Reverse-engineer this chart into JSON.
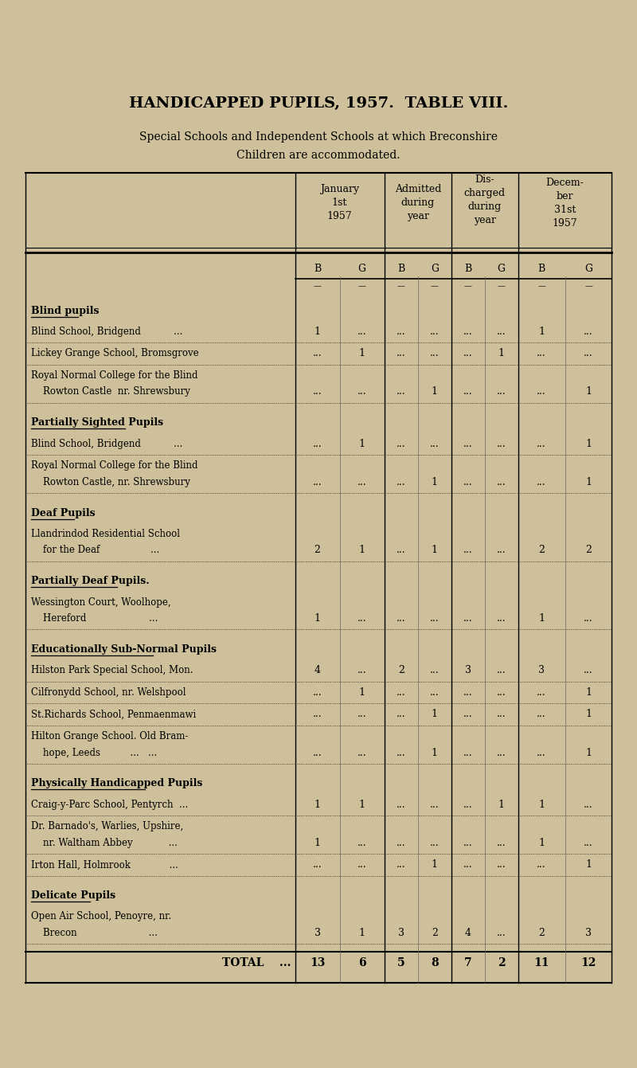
{
  "title": "HANDICAPPED PUPILS, 1957.  TABLE VIII.",
  "subtitle1": "Special Schools and Independent Schools at which Breconshire",
  "subtitle2": "Children are accommodated.",
  "bg_color": "#cdc09a",
  "sections": [
    {
      "header": "Blind pupils",
      "rows": [
        {
          "label": "Blind School, Bridgend           ...",
          "data": [
            "1",
            "...",
            "...",
            "...",
            "...",
            "...",
            "1",
            "..."
          ],
          "cont": false
        },
        {
          "label": "Lickey Grange School, Bromsgrove",
          "data": [
            "...",
            "1",
            "...",
            "...",
            "...",
            "1",
            "...",
            "..."
          ],
          "cont": false
        },
        {
          "label": "Royal Normal College for the Blind",
          "data": [
            "",
            "",
            "",
            "",
            "",
            "",
            "",
            ""
          ],
          "cont": false
        },
        {
          "label": "    Rowton Castle  nr. Shrewsbury",
          "data": [
            "...",
            "...",
            "...",
            "1",
            "...",
            "...",
            "...",
            "1"
          ],
          "cont": false
        }
      ],
      "dotted_after": [
        0,
        1,
        3
      ]
    },
    {
      "header": "Partially Sighted Pupils",
      "rows": [
        {
          "label": "Blind School, Bridgend           ...",
          "data": [
            "...",
            "1",
            "...",
            "...",
            "...",
            "...",
            "...",
            "1"
          ],
          "cont": false
        },
        {
          "label": "Royal Normal College for the Blind",
          "data": [
            "",
            "",
            "",
            "",
            "",
            "",
            "",
            ""
          ],
          "cont": false
        },
        {
          "label": "    Rowton Castle, nr. Shrewsbury",
          "data": [
            "...",
            "...",
            "...",
            "1",
            "...",
            "...",
            "...",
            "1"
          ],
          "cont": false
        }
      ],
      "dotted_after": [
        0,
        2
      ]
    },
    {
      "header": "Deaf Pupils",
      "rows": [
        {
          "label": "Llandrindod Residential School",
          "data": [
            "",
            "",
            "",
            "",
            "",
            "",
            "",
            ""
          ],
          "cont": false
        },
        {
          "label": "    for the Deaf                 ...",
          "data": [
            "2",
            "1",
            "...",
            "1",
            "...",
            "...",
            "2",
            "2"
          ],
          "cont": false
        }
      ],
      "dotted_after": [
        1
      ]
    },
    {
      "header": "Partially Deaf Pupils.",
      "rows": [
        {
          "label": "Wessington Court, Woolhope,",
          "data": [
            "",
            "",
            "",
            "",
            "",
            "",
            "",
            ""
          ],
          "cont": false
        },
        {
          "label": "    Hereford                     ...",
          "data": [
            "1",
            "...",
            "...",
            "...",
            "...",
            "...",
            "1",
            "..."
          ],
          "cont": false
        }
      ],
      "dotted_after": [
        1
      ]
    },
    {
      "header": "Educationally Sub-Normal Pupils",
      "rows": [
        {
          "label": "Hilston Park Special School, Mon.",
          "data": [
            "4",
            "...",
            "2",
            "...",
            "3",
            "...",
            "3",
            "..."
          ],
          "cont": false
        },
        {
          "label": "Cilfronydd School, nr. Welshpool",
          "data": [
            "...",
            "1",
            "...",
            "...",
            "...",
            "...",
            "...",
            "1"
          ],
          "cont": false
        },
        {
          "label": "St.Richards School, Penmaenmawi",
          "data": [
            "...",
            "...",
            "...",
            "1",
            "...",
            "...",
            "...",
            "1"
          ],
          "cont": false
        },
        {
          "label": "Hilton Grange School. Old Bram-",
          "data": [
            "",
            "",
            "",
            "",
            "",
            "",
            "",
            ""
          ],
          "cont": false
        },
        {
          "label": "    hope, Leeds          ...   ...",
          "data": [
            "...",
            "...",
            "...",
            "1",
            "...",
            "...",
            "...",
            "1"
          ],
          "cont": false
        }
      ],
      "dotted_after": [
        0,
        1,
        2,
        4
      ]
    },
    {
      "header": "Physically Handicapped Pupils",
      "rows": [
        {
          "label": "Craig-y-Parc School, Pentyrch  ...",
          "data": [
            "1",
            "1",
            "...",
            "...",
            "...",
            "1",
            "1",
            "..."
          ],
          "cont": false
        },
        {
          "label": "Dr. Barnado's, Warlies, Upshire,",
          "data": [
            "",
            "",
            "",
            "",
            "",
            "",
            "",
            ""
          ],
          "cont": false
        },
        {
          "label": "    nr. Waltham Abbey            ...",
          "data": [
            "1",
            "...",
            "...",
            "...",
            "...",
            "...",
            "1",
            "..."
          ],
          "cont": false
        },
        {
          "label": "Irton Hall, Holmrook             ...",
          "data": [
            "...",
            "...",
            "...",
            "1",
            "...",
            "...",
            "...",
            "1"
          ],
          "cont": false
        }
      ],
      "dotted_after": [
        0,
        2,
        3
      ]
    },
    {
      "header": "Delicate Pupils",
      "rows": [
        {
          "label": "Open Air School, Penoyre, nr.",
          "data": [
            "",
            "",
            "",
            "",
            "",
            "",
            "",
            ""
          ],
          "cont": false
        },
        {
          "label": "    Brecon                        ...",
          "data": [
            "3",
            "1",
            "3",
            "2",
            "4",
            "...",
            "2",
            "3"
          ],
          "cont": false
        }
      ],
      "dotted_after": [
        1
      ]
    }
  ],
  "total_row": {
    "label": "TOTAL",
    "data": [
      "13",
      "6",
      "5",
      "8",
      "7",
      "2",
      "11",
      "12"
    ]
  }
}
